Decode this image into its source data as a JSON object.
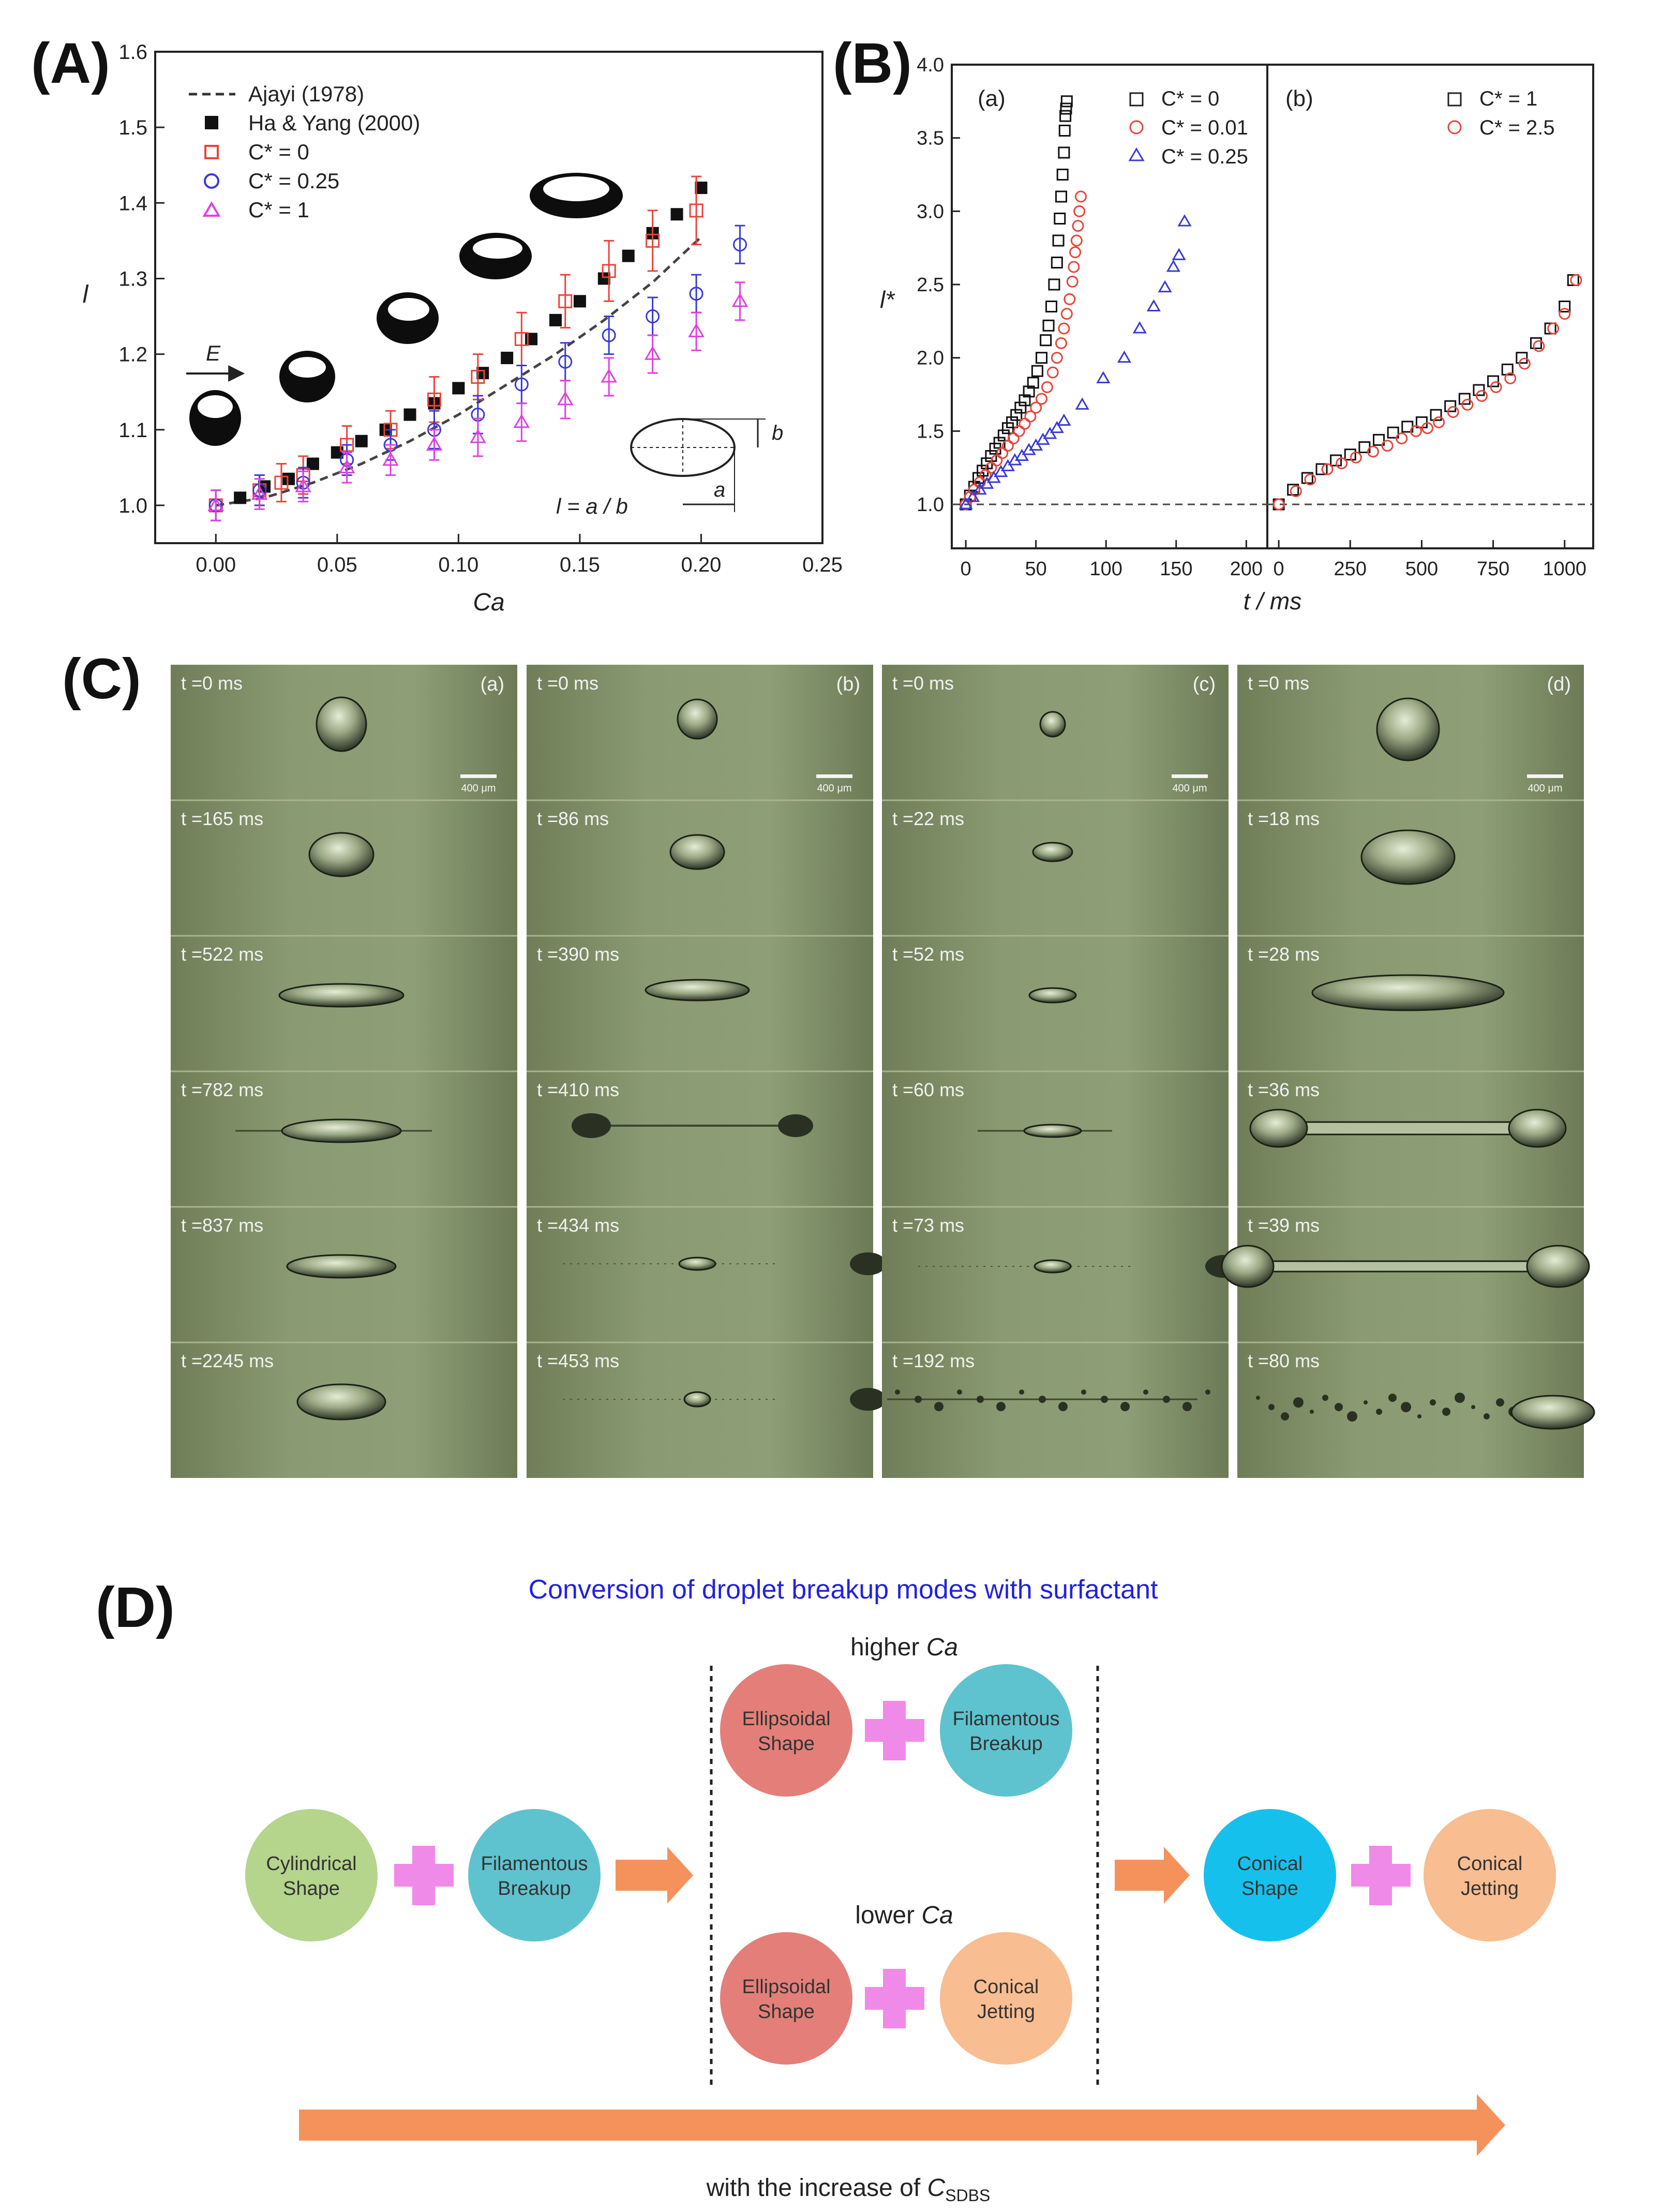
{
  "panels": {
    "A": {
      "label": "(A)"
    },
    "B": {
      "label": "(B)"
    },
    "C": {
      "label": "(C)"
    },
    "D": {
      "label": "(D)"
    }
  },
  "colors": {
    "black": "#111111",
    "red": "#e8443a",
    "blue": "#3a3ad6",
    "magenta": "#e040e0",
    "pink_plus": "#f08ae8",
    "arrow": "#f5925b",
    "title_blue": "#2222dd",
    "circle_green": "#b5d48c",
    "circle_teal": "#5ec3cf",
    "circle_red": "#e37f78",
    "circle_orange": "#f8bd90",
    "circle_cyan": "#16c0ec",
    "photo_bg": "#7e8e66"
  },
  "chart_data": [
    {
      "id": "A",
      "type": "scatter",
      "xlabel": "Ca",
      "ylabel": "l",
      "xlim": [
        -0.025,
        0.25
      ],
      "ylim": [
        0.95,
        1.6
      ],
      "xticks": [
        "0.00",
        "0.05",
        "0.10",
        "0.15",
        "0.20",
        "0.25"
      ],
      "xtick_values": [
        0,
        0.05,
        0.1,
        0.15,
        0.2,
        0.25
      ],
      "yticks": [
        "1.0",
        "1.1",
        "1.2",
        "1.3",
        "1.4",
        "1.5",
        "1.6"
      ],
      "ytick_values": [
        1.0,
        1.1,
        1.2,
        1.3,
        1.4,
        1.5,
        1.6
      ],
      "legend": [
        "Ajayi (1978)",
        "Ha & Yang (2000)",
        "C* = 0",
        "C* = 0.25",
        "C* = 1"
      ],
      "field_label": "E",
      "formula": "l = a / b",
      "inset_labels": {
        "a": "a",
        "b": "b"
      },
      "series": [
        {
          "name": "Ajayi (1978)",
          "style": "dashed-line",
          "x": [
            0,
            0.02,
            0.04,
            0.06,
            0.08,
            0.1,
            0.12,
            0.14,
            0.16,
            0.18,
            0.2
          ],
          "y": [
            1.0,
            1.01,
            1.03,
            1.055,
            1.085,
            1.12,
            1.16,
            1.2,
            1.245,
            1.295,
            1.355
          ]
        },
        {
          "name": "Ha & Yang (2000)",
          "style": "filled-square",
          "x": [
            0.01,
            0.02,
            0.03,
            0.04,
            0.05,
            0.06,
            0.07,
            0.08,
            0.09,
            0.1,
            0.11,
            0.12,
            0.13,
            0.14,
            0.15,
            0.16,
            0.17,
            0.18,
            0.19,
            0.2
          ],
          "y": [
            1.01,
            1.025,
            1.035,
            1.055,
            1.07,
            1.085,
            1.1,
            1.12,
            1.135,
            1.155,
            1.175,
            1.195,
            1.22,
            1.245,
            1.27,
            1.3,
            1.33,
            1.36,
            1.385,
            1.42
          ]
        },
        {
          "name": "C* = 0",
          "style": "open-square",
          "x": [
            0,
            0.018,
            0.027,
            0.036,
            0.054,
            0.072,
            0.09,
            0.108,
            0.126,
            0.144,
            0.162,
            0.18,
            0.198
          ],
          "y": [
            1.0,
            1.02,
            1.03,
            1.04,
            1.08,
            1.1,
            1.14,
            1.17,
            1.22,
            1.27,
            1.31,
            1.35,
            1.39
          ],
          "err": [
            0.02,
            0.02,
            0.025,
            0.025,
            0.025,
            0.025,
            0.03,
            0.03,
            0.035,
            0.035,
            0.04,
            0.04,
            0.045
          ]
        },
        {
          "name": "C* = 0.25",
          "style": "open-circle",
          "x": [
            0,
            0.018,
            0.036,
            0.054,
            0.072,
            0.09,
            0.108,
            0.126,
            0.144,
            0.162,
            0.18,
            0.198,
            0.216
          ],
          "y": [
            1.0,
            1.02,
            1.03,
            1.06,
            1.08,
            1.1,
            1.12,
            1.16,
            1.19,
            1.225,
            1.25,
            1.28,
            1.345
          ],
          "err": [
            0.02,
            0.02,
            0.02,
            0.02,
            0.02,
            0.025,
            0.025,
            0.025,
            0.025,
            0.025,
            0.025,
            0.025,
            0.025
          ]
        },
        {
          "name": "C* = 1",
          "style": "open-triangle",
          "x": [
            0,
            0.018,
            0.036,
            0.054,
            0.072,
            0.09,
            0.108,
            0.126,
            0.144,
            0.162,
            0.18,
            0.198,
            0.216
          ],
          "y": [
            1.0,
            1.015,
            1.025,
            1.05,
            1.06,
            1.08,
            1.09,
            1.11,
            1.14,
            1.17,
            1.2,
            1.23,
            1.27
          ],
          "err": [
            0.02,
            0.02,
            0.02,
            0.02,
            0.02,
            0.02,
            0.025,
            0.025,
            0.025,
            0.025,
            0.025,
            0.025,
            0.025
          ]
        }
      ]
    },
    {
      "id": "B-a",
      "type": "scatter",
      "subplot_label": "(a)",
      "ylabel": "l*",
      "xlim": [
        -10,
        215
      ],
      "ylim": [
        0.7,
        4.0
      ],
      "xticks": [
        "0",
        "50",
        "100",
        "150",
        "200"
      ],
      "xtick_values": [
        0,
        50,
        100,
        150,
        200
      ],
      "yticks": [
        "1.0",
        "1.5",
        "2.0",
        "2.5",
        "3.0",
        "3.5",
        "4.0"
      ],
      "ytick_values": [
        1.0,
        1.5,
        2.0,
        2.5,
        3.0,
        3.5,
        4.0
      ],
      "reference_line": 1.0,
      "legend": [
        "C* = 0",
        "C* = 0.01",
        "C* = 0.25"
      ],
      "series": [
        {
          "name": "C* = 0",
          "style": "open-square",
          "x": [
            0,
            3,
            6,
            9,
            12,
            15,
            18,
            21,
            24,
            27,
            30,
            33,
            36,
            39,
            42,
            45,
            48,
            51,
            54,
            57,
            59,
            61,
            63,
            65,
            66,
            67,
            68,
            69,
            70,
            70.5,
            71,
            71.5,
            72
          ],
          "y": [
            1.0,
            1.06,
            1.12,
            1.18,
            1.23,
            1.28,
            1.33,
            1.38,
            1.42,
            1.47,
            1.52,
            1.56,
            1.61,
            1.66,
            1.71,
            1.77,
            1.83,
            1.91,
            2.0,
            2.12,
            2.22,
            2.35,
            2.5,
            2.65,
            2.8,
            2.95,
            3.1,
            3.25,
            3.4,
            3.55,
            3.65,
            3.7,
            3.75
          ]
        },
        {
          "name": "C* = 0.01",
          "style": "open-circle",
          "x": [
            0,
            3,
            6,
            10,
            14,
            18,
            22,
            26,
            30,
            34,
            38,
            42,
            46,
            50,
            54,
            58,
            62,
            65,
            68,
            70,
            72,
            74,
            76,
            77,
            78,
            79,
            80,
            81,
            82
          ],
          "y": [
            1.0,
            1.05,
            1.1,
            1.15,
            1.2,
            1.25,
            1.3,
            1.35,
            1.4,
            1.45,
            1.5,
            1.55,
            1.6,
            1.66,
            1.72,
            1.8,
            1.9,
            2.0,
            2.1,
            2.2,
            2.3,
            2.4,
            2.52,
            2.62,
            2.72,
            2.8,
            2.9,
            3.0,
            3.1
          ]
        },
        {
          "name": "C* = 0.25",
          "style": "open-triangle",
          "x": [
            0,
            5,
            10,
            15,
            20,
            25,
            30,
            35,
            40,
            45,
            50,
            55,
            60,
            65,
            70,
            83,
            98,
            113,
            124,
            134,
            142,
            148,
            152,
            156
          ],
          "y": [
            1.0,
            1.05,
            1.1,
            1.14,
            1.18,
            1.22,
            1.26,
            1.3,
            1.33,
            1.37,
            1.4,
            1.44,
            1.48,
            1.52,
            1.57,
            1.68,
            1.86,
            2.0,
            2.2,
            2.35,
            2.48,
            2.62,
            2.7,
            2.93
          ]
        }
      ]
    },
    {
      "id": "B-b",
      "type": "scatter",
      "subplot_label": "(b)",
      "xlim": [
        -40,
        1100
      ],
      "ylim": [
        0.7,
        4.0
      ],
      "xticks": [
        "0",
        "250",
        "500",
        "750",
        "1000"
      ],
      "xtick_values": [
        0,
        250,
        500,
        750,
        1000
      ],
      "reference_line": 1.0,
      "legend": [
        "C* = 1",
        "C* = 2.5"
      ],
      "series": [
        {
          "name": "C* = 1",
          "style": "open-square",
          "x": [
            0,
            50,
            100,
            150,
            200,
            250,
            300,
            350,
            400,
            450,
            500,
            550,
            600,
            650,
            700,
            750,
            800,
            850,
            900,
            950,
            1000,
            1030
          ],
          "y": [
            1.0,
            1.1,
            1.18,
            1.24,
            1.3,
            1.34,
            1.39,
            1.44,
            1.49,
            1.53,
            1.56,
            1.61,
            1.67,
            1.72,
            1.78,
            1.84,
            1.92,
            2.0,
            2.1,
            2.2,
            2.35,
            2.53
          ]
        },
        {
          "name": "C* = 2.5",
          "style": "open-circle",
          "x": [
            0,
            60,
            110,
            170,
            220,
            270,
            330,
            380,
            430,
            480,
            520,
            560,
            610,
            660,
            710,
            760,
            810,
            860,
            910,
            960,
            1000,
            1040
          ],
          "y": [
            1.0,
            1.09,
            1.17,
            1.24,
            1.28,
            1.32,
            1.36,
            1.4,
            1.45,
            1.5,
            1.52,
            1.56,
            1.63,
            1.68,
            1.74,
            1.8,
            1.86,
            1.96,
            2.08,
            2.2,
            2.3,
            2.53
          ]
        }
      ]
    }
  ],
  "chartB": {
    "xlabel": "t / ms"
  },
  "panelC": {
    "scale_label": "400 μm",
    "columns": [
      {
        "label": "(a)",
        "times": [
          "t =0 ms",
          "t =165 ms",
          "t =522 ms",
          "t =782 ms",
          "t =837 ms",
          "t =2245 ms"
        ]
      },
      {
        "label": "(b)",
        "times": [
          "t =0 ms",
          "t =86 ms",
          "t =390 ms",
          "t =410 ms",
          "t =434 ms",
          "t =453 ms"
        ]
      },
      {
        "label": "(c)",
        "times": [
          "t =0 ms",
          "t =22 ms",
          "t =52 ms",
          "t =60 ms",
          "t =73 ms",
          "t =192 ms"
        ]
      },
      {
        "label": "(d)",
        "times": [
          "t =0 ms",
          "t =18 ms",
          "t =28 ms",
          "t =36 ms",
          "t =39 ms",
          "t =80 ms"
        ]
      }
    ]
  },
  "panelD": {
    "title": "Conversion of droplet breakup modes with surfactant",
    "higher_ca_prefix": "higher ",
    "lower_ca_prefix": "lower ",
    "ca_symbol": "Ca",
    "circles": {
      "cylindrical": [
        "Cylindrical",
        "Shape"
      ],
      "filamentous": [
        "Filamentous",
        "Breakup"
      ],
      "ellipsoidal": [
        "Ellipsoidal",
        "Shape"
      ],
      "conical_jetting": [
        "Conical",
        "Jetting"
      ],
      "conical_shape": [
        "Conical",
        "Shape"
      ]
    },
    "bottom_text": "with the increase of ",
    "bottom_symbol": "C",
    "bottom_subscript": "SDBS"
  }
}
